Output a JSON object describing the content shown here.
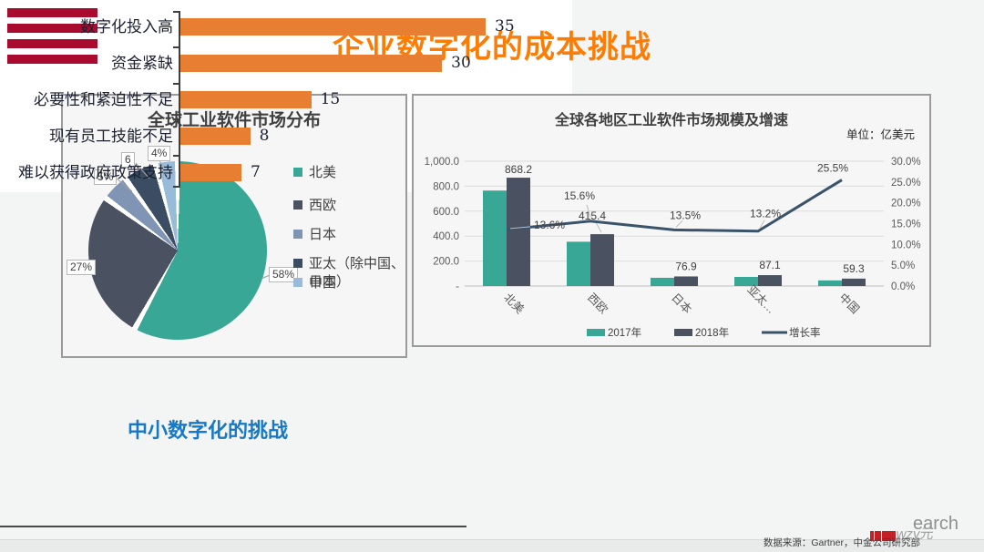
{
  "header": {
    "title": "企业数字化的成本挑战"
  },
  "subtitle": "中小数字化的挑战",
  "footer": {
    "source": "数据来源：Gartner，中金公司研究部",
    "watermark_fragment": "earch",
    "watermark_scribble": "wzv元"
  },
  "chart_data": [
    {
      "type": "pie",
      "title": "全球工业软件市场分布",
      "labels": [
        "北美",
        "西欧",
        "日本",
        "亚太（除中国、日本）",
        "中国"
      ],
      "values": [
        58,
        27,
        5,
        6,
        4
      ],
      "value_labels": [
        "58%",
        "27%",
        "5%",
        "6",
        "4%"
      ],
      "colors": [
        "#38a795",
        "#4a5160",
        "#8095b3",
        "#3a4d63",
        "#97bbd9"
      ],
      "legend_position": "right"
    },
    {
      "type": "bar+line",
      "title": "全球各地区工业软件市场规模及增速",
      "unit_label": "单位：亿美元",
      "categories": [
        "北美",
        "西欧",
        "日本",
        "亚太…",
        "中国"
      ],
      "series": [
        {
          "name": "2017年",
          "kind": "bar",
          "color": "#38a795",
          "values": [
            765,
            355,
            66,
            73,
            45
          ],
          "note": "values estimated from bar heights"
        },
        {
          "name": "2018年",
          "kind": "bar",
          "color": "#4a5262",
          "values": [
            868.2,
            415.4,
            76.9,
            87.1,
            59.3
          ],
          "labels": [
            "868.2",
            "415.4",
            "76.9",
            "87.1",
            "59.3"
          ]
        },
        {
          "name": "增长率",
          "kind": "line",
          "color": "#3a536b",
          "values": [
            13.6,
            15.6,
            13.5,
            13.2,
            25.5
          ],
          "labels": [
            "13.6%",
            "15.6%",
            "13.5%",
            "13.2%",
            "25.5%"
          ]
        }
      ],
      "left_axis": {
        "ticks": [
          "1,000.0",
          "800.0",
          "600.0",
          "400.0",
          "200.0",
          "-"
        ],
        "min": 0,
        "max": 1000
      },
      "right_axis": {
        "ticks": [
          "30.0%",
          "25.0%",
          "20.0%",
          "15.0%",
          "10.0%",
          "5.0%",
          "0.0%"
        ],
        "min": 0,
        "max": 30
      },
      "legend_position": "bottom",
      "grid": true
    },
    {
      "type": "bar-horizontal",
      "categories": [
        "数字化投入高",
        "资金紧缺",
        "必要性和紧迫性不足",
        "现有员工技能不足",
        "难以获得政府政策支持"
      ],
      "values": [
        35,
        30,
        15,
        8,
        7
      ],
      "bar_color": "#e87e32",
      "xlim": [
        0,
        36.5
      ]
    }
  ]
}
